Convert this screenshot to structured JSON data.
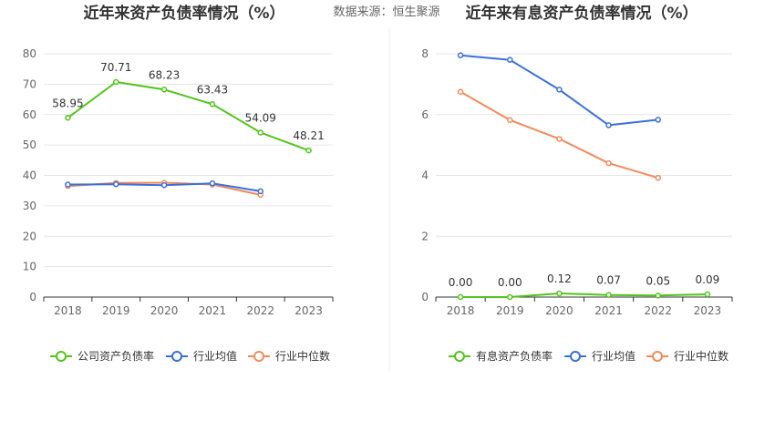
{
  "source_text": "数据来源：恒生聚源",
  "colors": {
    "green": "#52c41a",
    "blue": "#3b6fd8",
    "orange": "#f08a5d",
    "grid": "#e6e6e6",
    "axis": "#333333",
    "tick_text": "#666666",
    "title": "#333333"
  },
  "chart_data": [
    {
      "type": "line",
      "title": "近年来资产负债率情况（%）",
      "categories": [
        "2018",
        "2019",
        "2020",
        "2021",
        "2022",
        "2023"
      ],
      "yticks": [
        "0",
        "10",
        "20",
        "30",
        "40",
        "50",
        "60",
        "70",
        "80"
      ],
      "ylim": [
        0,
        80
      ],
      "series": [
        {
          "name": "公司资产负债率",
          "color": "#52c41a",
          "values": [
            58.95,
            70.71,
            68.23,
            63.43,
            54.09,
            48.21
          ],
          "labels": [
            "58.95",
            "70.71",
            "68.23",
            "63.43",
            "54.09",
            "48.21"
          ]
        },
        {
          "name": "行业均值",
          "color": "#3b6fd8",
          "values": [
            37.0,
            37.1,
            36.8,
            37.4,
            34.8,
            null
          ]
        },
        {
          "name": "行业中位数",
          "color": "#f08a5d",
          "values": [
            36.5,
            37.5,
            37.6,
            37.0,
            33.6,
            null
          ]
        }
      ],
      "legend_position": "bottom"
    },
    {
      "type": "line",
      "title": "近年来有息资产负债率情况（%）",
      "categories": [
        "2018",
        "2019",
        "2020",
        "2021",
        "2022",
        "2023"
      ],
      "yticks": [
        "0",
        "2",
        "4",
        "6",
        "8"
      ],
      "ylim": [
        0,
        8
      ],
      "series": [
        {
          "name": "有息资产负债率",
          "color": "#52c41a",
          "values": [
            0.0,
            0.0,
            0.12,
            0.07,
            0.05,
            0.09
          ],
          "labels": [
            "0.00",
            "0.00",
            "0.12",
            "0.07",
            "0.05",
            "0.09"
          ]
        },
        {
          "name": "行业均值",
          "color": "#3b6fd8",
          "values": [
            7.95,
            7.8,
            6.82,
            5.65,
            5.83,
            null
          ]
        },
        {
          "name": "行业中位数",
          "color": "#f08a5d",
          "values": [
            6.75,
            5.82,
            5.2,
            4.4,
            3.92,
            null
          ]
        }
      ],
      "legend_position": "bottom"
    }
  ]
}
